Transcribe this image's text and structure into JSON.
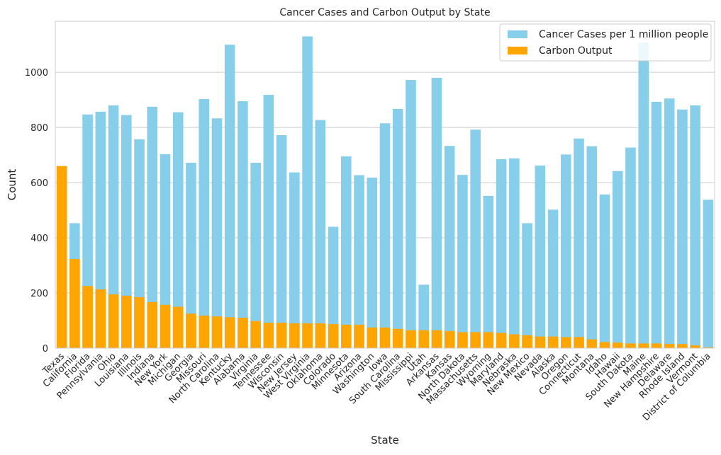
{
  "chart_data": {
    "type": "bar",
    "title": "Cancer Cases and Carbon Output by State",
    "xlabel": "State",
    "ylabel": "Count",
    "ylim": [
      0,
      1185
    ],
    "yticks": [
      0,
      200,
      400,
      600,
      800,
      1000
    ],
    "grid": true,
    "legend_position": "top-right",
    "categories": [
      "Texas",
      "California",
      "Florida",
      "Pennsylvania",
      "Ohio",
      "Louisiana",
      "Illinois",
      "Indiana",
      "New York",
      "Michigan",
      "Georgia",
      "Missouri",
      "North Carolina",
      "Kentucky",
      "Alabama",
      "Virginia",
      "Tennessee",
      "Wisconsin",
      "New Jersey",
      "West Virginia",
      "Oklahoma",
      "Colorado",
      "Minnesota",
      "Arizona",
      "Washington",
      "Iowa",
      "South Carolina",
      "Mississippi",
      "Utah",
      "Arkansas",
      "Kansas",
      "North Dakota",
      "Massachusetts",
      "Wyoming",
      "Maryland",
      "Nebraska",
      "New Mexico",
      "Nevada",
      "Alaska",
      "Oregon",
      "Connecticut",
      "Montana",
      "Idaho",
      "Hawaii",
      "South Dakota",
      "Maine",
      "New Hampshire",
      "Delaware",
      "Rhode Island",
      "Vermont",
      "District of Columbia"
    ],
    "series": [
      {
        "name": "Cancer Cases per 1 million people",
        "color": "#87ceeb",
        "values": [
          660,
          453,
          847,
          857,
          880,
          845,
          757,
          875,
          703,
          855,
          672,
          903,
          833,
          1100,
          895,
          672,
          918,
          772,
          637,
          1130,
          827,
          440,
          695,
          627,
          618,
          815,
          867,
          972,
          230,
          980,
          733,
          628,
          792,
          552,
          685,
          688,
          453,
          662,
          502,
          702,
          760,
          732,
          557,
          642,
          727,
          1108,
          893,
          905,
          865,
          880,
          538
        ]
      },
      {
        "name": "Carbon Output",
        "color": "#ffa500",
        "values": [
          660,
          323,
          225,
          213,
          195,
          190,
          185,
          167,
          157,
          150,
          125,
          118,
          115,
          112,
          110,
          98,
          92,
          92,
          90,
          90,
          90,
          87,
          85,
          85,
          75,
          75,
          70,
          65,
          65,
          65,
          62,
          58,
          58,
          58,
          55,
          50,
          47,
          42,
          42,
          40,
          40,
          32,
          22,
          20,
          17,
          17,
          17,
          15,
          15,
          10,
          3
        ]
      }
    ]
  }
}
